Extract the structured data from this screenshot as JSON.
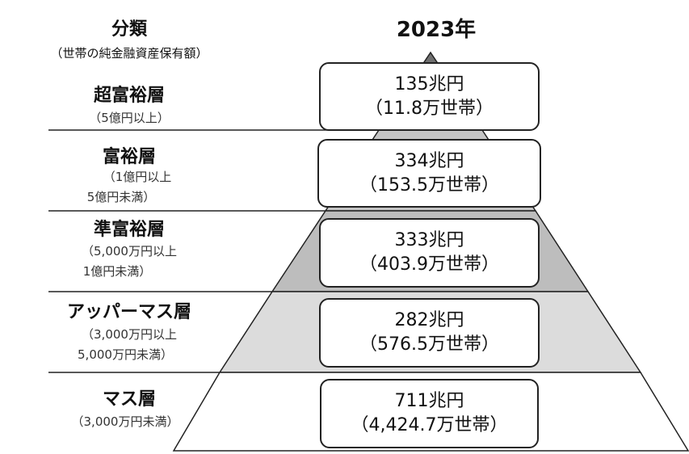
{
  "header": {
    "category_title": "分類",
    "category_subtitle": "（世帯の純金融資産保有額）",
    "year": "2023年"
  },
  "tiers": [
    {
      "name": "超富裕層",
      "range_lines": [
        "（5億円以上）"
      ],
      "assets": "135兆円",
      "households": "（11.8万世帯）",
      "fill": "#707070"
    },
    {
      "name": "富裕層",
      "range_lines": [
        "（1億円以上",
        "5億円未満）"
      ],
      "assets": "334兆円",
      "households": "（153.5万世帯）",
      "fill": "#c4c4c4"
    },
    {
      "name": "準富裕層",
      "range_lines": [
        "（5,000万円以上",
        "1億円未満）"
      ],
      "assets": "333兆円",
      "households": "（403.9万世帯）",
      "fill": "#bdbdbd"
    },
    {
      "name": "アッパーマス層",
      "range_lines": [
        "（3,000万円以上",
        "5,000万円未満）"
      ],
      "assets": "282兆円",
      "households": "（576.5万世帯）",
      "fill": "#dcdcdc"
    },
    {
      "name": "マス層",
      "range_lines": [
        "（3,000万円未満）"
      ],
      "assets": "711兆円",
      "households": "（4,424.7万世帯）",
      "fill": "#ffffff"
    }
  ]
}
